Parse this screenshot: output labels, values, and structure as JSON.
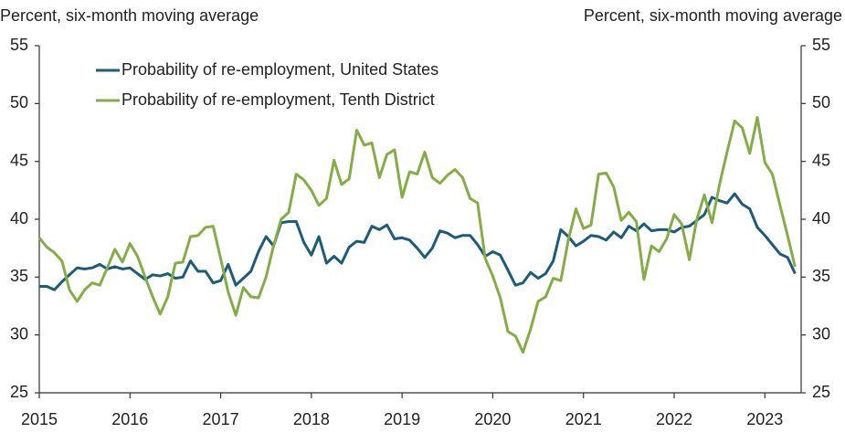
{
  "chart_data": {
    "type": "line",
    "y_label": "Percent, six-month moving average",
    "y2_label": "Percent, six-month moving average",
    "x": [
      2015,
      2015.083,
      2015.167,
      2015.25,
      2015.333,
      2015.417,
      2015.5,
      2015.583,
      2015.667,
      2015.75,
      2015.833,
      2015.917,
      2016,
      2016.083,
      2016.167,
      2016.25,
      2016.333,
      2016.417,
      2016.5,
      2016.583,
      2016.667,
      2016.75,
      2016.833,
      2016.917,
      2017,
      2017.083,
      2017.167,
      2017.25,
      2017.333,
      2017.417,
      2017.5,
      2017.583,
      2017.667,
      2017.75,
      2017.833,
      2017.917,
      2018,
      2018.083,
      2018.167,
      2018.25,
      2018.333,
      2018.417,
      2018.5,
      2018.583,
      2018.667,
      2018.75,
      2018.833,
      2018.917,
      2019,
      2019.083,
      2019.167,
      2019.25,
      2019.333,
      2019.417,
      2019.5,
      2019.583,
      2019.667,
      2019.75,
      2019.833,
      2019.917,
      2020,
      2020.083,
      2020.167,
      2020.25,
      2020.333,
      2020.417,
      2020.5,
      2020.583,
      2020.667,
      2020.75,
      2020.833,
      2020.917,
      2021,
      2021.083,
      2021.167,
      2021.25,
      2021.333,
      2021.417,
      2021.5,
      2021.583,
      2021.667,
      2021.75,
      2021.833,
      2021.917,
      2022,
      2022.083,
      2022.167,
      2022.25,
      2022.333,
      2022.417,
      2022.5,
      2022.583,
      2022.667,
      2022.75,
      2022.833,
      2022.917,
      2023,
      2023.083,
      2023.167,
      2023.25,
      2023.333
    ],
    "xlim": [
      2015,
      2023.4
    ],
    "xticks": [
      2015,
      2016,
      2017,
      2018,
      2019,
      2020,
      2021,
      2022,
      2023
    ],
    "ylim": [
      25,
      55
    ],
    "yticks": [
      25,
      30,
      35,
      40,
      45,
      50,
      55
    ],
    "y2lim": [
      25,
      55
    ],
    "y2ticks": [
      25,
      30,
      35,
      40,
      45,
      50,
      55
    ],
    "legend": "upper left",
    "series": [
      {
        "name": "Probability of re-employment, United States",
        "color": "#1d5b7a",
        "values": [
          34.2,
          34.2,
          33.9,
          34.6,
          35.2,
          35.8,
          35.7,
          35.8,
          36.1,
          35.7,
          35.9,
          35.7,
          35.8,
          35.3,
          34.8,
          35.2,
          35.1,
          35.3,
          34.9,
          35.0,
          36.4,
          35.5,
          35.5,
          34.5,
          34.7,
          36.1,
          34.3,
          34.9,
          35.5,
          37.2,
          38.5,
          37.7,
          39.7,
          39.8,
          39.8,
          38.0,
          36.9,
          38.5,
          36.2,
          36.8,
          36.2,
          37.6,
          38.1,
          38.0,
          39.4,
          39.1,
          39.5,
          38.3,
          38.4,
          38.2,
          37.5,
          36.7,
          37.5,
          39.0,
          38.8,
          38.4,
          38.6,
          38.6,
          37.8,
          36.8,
          37.2,
          36.9,
          35.6,
          34.3,
          34.5,
          35.4,
          34.9,
          35.3,
          36.4,
          39.1,
          38.5,
          37.7,
          38.1,
          38.6,
          38.5,
          38.2,
          38.9,
          38.4,
          39.4,
          39.0,
          39.6,
          39.0,
          39.1,
          39.1,
          38.9,
          39.3,
          39.4,
          39.9,
          40.4,
          41.9,
          41.6,
          41.4,
          42.2,
          41.3,
          40.9,
          39.3,
          38.6,
          37.8,
          37.0,
          36.7,
          35.3
        ]
      },
      {
        "name": "Probability of re-employment, Tenth District",
        "color": "#84ad45",
        "values": [
          38.4,
          37.6,
          37.1,
          36.4,
          33.9,
          32.9,
          33.9,
          34.5,
          34.3,
          35.8,
          37.4,
          36.3,
          37.9,
          36.8,
          35.0,
          33.3,
          31.8,
          33.3,
          36.2,
          36.3,
          38.5,
          38.6,
          39.3,
          39.4,
          36.6,
          33.7,
          31.7,
          34.1,
          33.3,
          33.2,
          35.0,
          37.7,
          40.0,
          40.6,
          43.9,
          43.4,
          42.5,
          41.2,
          41.8,
          45.1,
          43.0,
          43.5,
          47.7,
          46.4,
          46.6,
          43.6,
          45.6,
          46.0,
          41.9,
          44.1,
          43.9,
          45.8,
          43.6,
          43.1,
          43.8,
          44.3,
          43.6,
          41.8,
          41.4,
          36.6,
          35.1,
          33.2,
          30.3,
          29.9,
          28.5,
          30.5,
          32.9,
          33.3,
          34.9,
          34.7,
          38.2,
          40.9,
          39.2,
          39.5,
          43.9,
          44.0,
          42.8,
          39.9,
          40.6,
          39.8,
          34.8,
          37.7,
          37.2,
          38.3,
          40.4,
          39.6,
          36.5,
          40.0,
          42.1,
          39.7,
          43.0,
          45.8,
          48.5,
          47.9,
          45.7,
          48.8,
          44.9,
          43.9,
          41.2,
          38.6,
          35.9
        ]
      }
    ]
  }
}
